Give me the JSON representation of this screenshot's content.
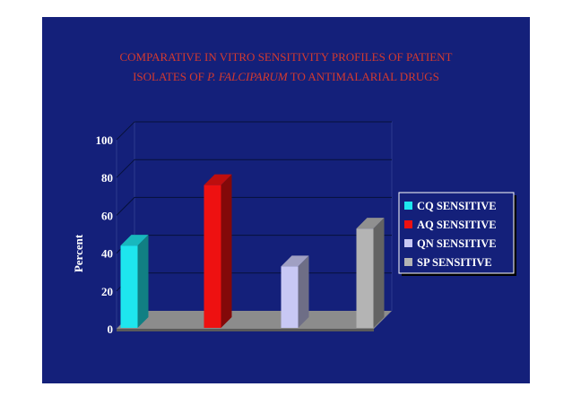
{
  "chart_data": {
    "type": "bar",
    "title_line1": "COMPARATIVE IN VITRO SENSITIVITY PROFILES OF PATIENT",
    "title_line2_prefix": "ISOLATES OF ",
    "title_line2_italic": "P. FALCIPARUM",
    "title_line2_suffix": "  TO ANTIMALARIAL DRUGS",
    "ylabel": "Percent",
    "ylim": [
      0,
      100
    ],
    "yticks": [
      0,
      20,
      40,
      60,
      80,
      100
    ],
    "grid": true,
    "three_d": true,
    "legend_position": "right",
    "series": [
      {
        "name": "CQ SENSITIVE",
        "value": 44,
        "color": "#1ee6ee"
      },
      {
        "name": "AQ SENSITIVE",
        "value": 76,
        "color": "#ee1111"
      },
      {
        "name": "QN SENSITIVE",
        "value": 33,
        "color": "#c8c8f4"
      },
      {
        "name": "SP SENSITIVE",
        "value": 53,
        "color": "#b4b4b4"
      }
    ]
  },
  "colors": {
    "background": "#14207a",
    "title": "#d43a2f",
    "floor": "#8c8c8c",
    "text": "#ffffff"
  }
}
